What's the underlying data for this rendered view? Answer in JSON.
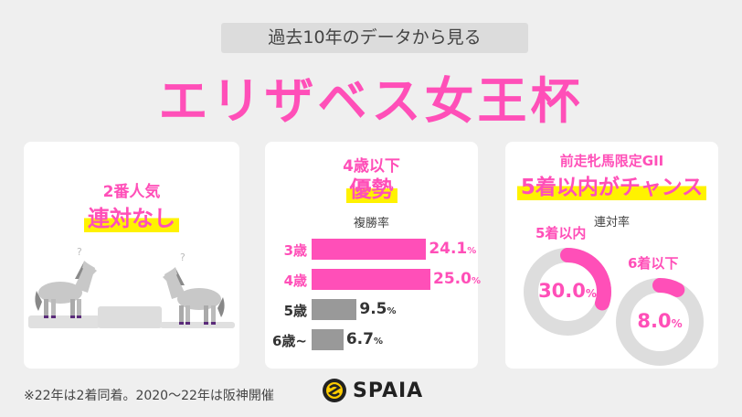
{
  "header": {
    "subtitle": "過去10年のデータから見る",
    "title": "エリザベス女王杯"
  },
  "card1": {
    "line1": "2番人気",
    "line2": "連対なし"
  },
  "card2": {
    "line1": "4歳以下",
    "line2": "優勢",
    "metric": "複勝率",
    "chart_data": {
      "type": "bar",
      "categories": [
        "3歳",
        "4歳",
        "5歳",
        "6歳~"
      ],
      "values": [
        24.1,
        25.0,
        9.5,
        6.7
      ],
      "unit": "%",
      "colors": [
        "#ff4fb8",
        "#ff4fb8",
        "#999999",
        "#999999"
      ],
      "value_labels": [
        "24.1",
        "25.0",
        "9.5",
        "6.7"
      ]
    }
  },
  "card3": {
    "line1": "前走牝馬限定GII",
    "line2": "5着以内がチャンス",
    "metric": "連対率",
    "chart_data": {
      "type": "pie",
      "series": [
        {
          "name": "5着以内",
          "value": 30.0,
          "label": "30.0"
        },
        {
          "name": "6着以下",
          "value": 8.0,
          "label": "8.0"
        }
      ],
      "unit": "%",
      "colors": {
        "fill": "#ff4fb8",
        "track": "#dddddd"
      }
    }
  },
  "footer": {
    "note": "※22年は2着同着。2020～22年は阪神開催",
    "logo": "SPAIA"
  },
  "colors": {
    "accent": "#ff4fb8",
    "highlight": "#fff200",
    "background": "#efefef"
  }
}
